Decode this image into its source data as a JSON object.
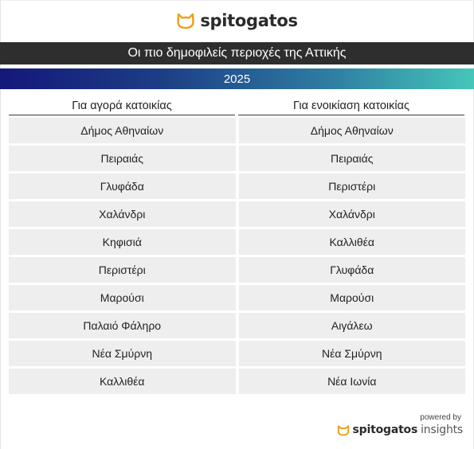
{
  "brand": {
    "name": "spitogatos",
    "accent": "#f39c12"
  },
  "title": "Οι πιο δημοφιλείς περιοχές της Αττικής",
  "year": "2025",
  "columns": {
    "buy": "Για αγορά κατοικίας",
    "rent": "Για ενοικίαση κατοικίας"
  },
  "rows": [
    {
      "buy": "Δήμος Αθηναίων",
      "rent": "Δήμος Αθηναίων"
    },
    {
      "buy": "Πειραιάς",
      "rent": "Πειραιάς"
    },
    {
      "buy": "Γλυφάδα",
      "rent": "Περιστέρι"
    },
    {
      "buy": "Χαλάνδρι",
      "rent": "Χαλάνδρι"
    },
    {
      "buy": "Κηφισιά",
      "rent": "Καλλιθέα"
    },
    {
      "buy": "Περιστέρι",
      "rent": "Γλυφάδα"
    },
    {
      "buy": "Μαρούσι",
      "rent": "Μαρούσι"
    },
    {
      "buy": "Παλαιό Φάληρο",
      "rent": "Αιγάλεω"
    },
    {
      "buy": "Νέα Σμύρνη",
      "rent": "Νέα Σμύρνη"
    },
    {
      "buy": "Καλλιθέα",
      "rent": "Νέα Ιωνία"
    }
  ],
  "footer": {
    "powered_by": "powered by",
    "brand": "spitogatos",
    "suffix": "insights"
  }
}
